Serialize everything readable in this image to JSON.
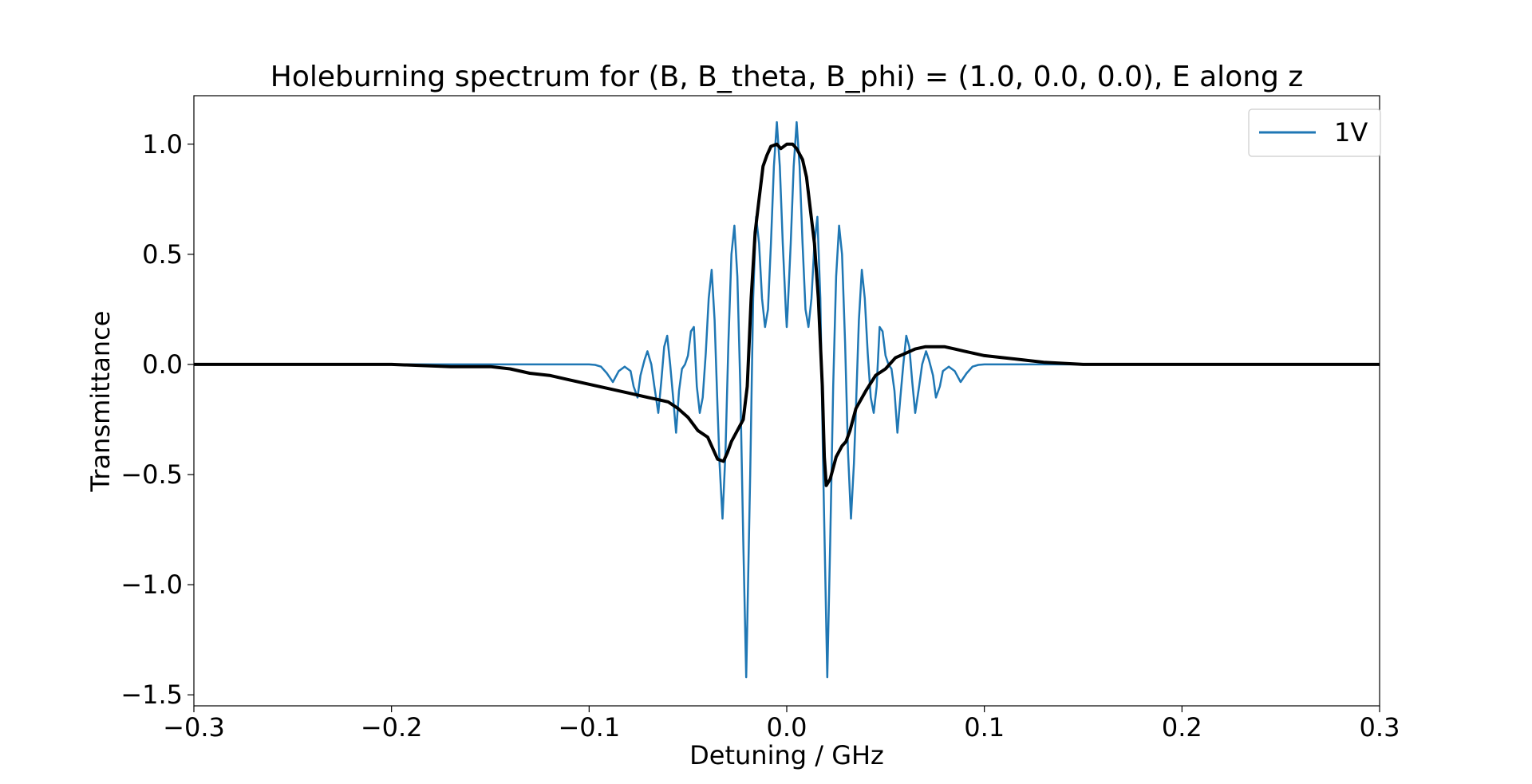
{
  "chart_data": {
    "type": "line",
    "title": "Holeburning spectrum for (B, B_theta, B_phi) = (1.0, 0.0, 0.0), E along z",
    "xlabel": "Detuning / GHz",
    "ylabel": "Transmittance",
    "xlim": [
      -0.3,
      0.3
    ],
    "ylim": [
      -1.55,
      1.22
    ],
    "xticks": [
      -0.3,
      -0.2,
      -0.1,
      0.0,
      0.1,
      0.2,
      0.3
    ],
    "xtick_labels": [
      "−0.3",
      "−0.2",
      "−0.1",
      "0.0",
      "0.1",
      "0.2",
      "0.3"
    ],
    "yticks": [
      1.0,
      0.5,
      0.0,
      -0.5,
      -1.0,
      -1.5
    ],
    "ytick_labels": [
      "1.0",
      "0.5",
      "0.0",
      "−0.5",
      "−1.0",
      "−1.5"
    ],
    "grid": false,
    "legend": {
      "placement": "top-right",
      "entries": [
        {
          "label": "1V",
          "color": "#1f77b4"
        }
      ]
    },
    "series": [
      {
        "name": "1V",
        "color": "#1f77b4",
        "style": "thin",
        "x": [
          -0.3,
          -0.1,
          -0.097,
          -0.094,
          -0.091,
          -0.088,
          -0.085,
          -0.082,
          -0.079,
          -0.0775,
          -0.0755,
          -0.074,
          -0.072,
          -0.0705,
          -0.0685,
          -0.067,
          -0.065,
          -0.0635,
          -0.062,
          -0.0605,
          -0.059,
          -0.0575,
          -0.056,
          -0.0545,
          -0.053,
          -0.0515,
          -0.05,
          -0.0485,
          -0.047,
          -0.0455,
          -0.044,
          -0.0425,
          -0.041,
          -0.0395,
          -0.038,
          -0.0365,
          -0.035,
          -0.034,
          -0.0325,
          -0.031,
          -0.0295,
          -0.028,
          -0.0265,
          -0.025,
          -0.0235,
          -0.022,
          -0.0205,
          -0.0185,
          -0.017,
          -0.0155,
          -0.014,
          -0.0125,
          -0.011,
          -0.0095,
          -0.008,
          -0.0065,
          -0.005,
          -0.0035,
          -0.002,
          -0.0005,
          0.0,
          0.0005,
          0.002,
          0.0035,
          0.005,
          0.0065,
          0.008,
          0.0095,
          0.011,
          0.0125,
          0.014,
          0.0155,
          0.017,
          0.0185,
          0.0205,
          0.022,
          0.0235,
          0.025,
          0.0265,
          0.028,
          0.0295,
          0.031,
          0.0325,
          0.034,
          0.035,
          0.0365,
          0.038,
          0.0395,
          0.041,
          0.0425,
          0.044,
          0.0455,
          0.047,
          0.0485,
          0.05,
          0.0515,
          0.053,
          0.0545,
          0.056,
          0.0575,
          0.059,
          0.0605,
          0.062,
          0.0635,
          0.065,
          0.067,
          0.0685,
          0.0705,
          0.072,
          0.074,
          0.0755,
          0.0775,
          0.079,
          0.082,
          0.085,
          0.088,
          0.091,
          0.094,
          0.097,
          0.1,
          0.3
        ],
        "y": [
          0.0,
          0.0,
          -0.002,
          -0.01,
          -0.04,
          -0.08,
          -0.03,
          -0.01,
          -0.03,
          -0.1,
          -0.15,
          -0.05,
          0.02,
          0.06,
          0.0,
          -0.1,
          -0.22,
          -0.08,
          0.08,
          0.13,
          0.0,
          -0.15,
          -0.31,
          -0.12,
          -0.02,
          0.0,
          0.04,
          0.15,
          0.17,
          -0.1,
          -0.22,
          -0.15,
          0.05,
          0.3,
          0.43,
          0.2,
          -0.2,
          -0.45,
          -0.7,
          -0.4,
          0.1,
          0.5,
          0.63,
          0.4,
          -0.1,
          -0.8,
          -1.42,
          -0.5,
          0.3,
          0.67,
          0.55,
          0.3,
          0.17,
          0.25,
          0.55,
          0.9,
          1.1,
          0.9,
          0.55,
          0.25,
          0.17,
          0.25,
          0.55,
          0.9,
          1.1,
          0.9,
          0.55,
          0.25,
          0.17,
          0.3,
          0.55,
          0.67,
          0.3,
          -0.5,
          -1.42,
          -0.8,
          -0.1,
          0.4,
          0.63,
          0.5,
          0.1,
          -0.4,
          -0.7,
          -0.45,
          -0.2,
          0.2,
          0.43,
          0.3,
          0.05,
          -0.15,
          -0.22,
          -0.1,
          0.17,
          0.15,
          0.04,
          0.0,
          -0.02,
          -0.12,
          -0.31,
          -0.15,
          0.0,
          0.13,
          0.08,
          -0.08,
          -0.22,
          -0.1,
          0.0,
          0.06,
          0.02,
          -0.05,
          -0.15,
          -0.1,
          -0.03,
          -0.01,
          -0.03,
          -0.08,
          -0.04,
          -0.01,
          -0.002,
          0.0,
          0.0
        ]
      },
      {
        "name": "",
        "color": "#000000",
        "style": "thick",
        "x": [
          -0.3,
          -0.2,
          -0.17,
          -0.15,
          -0.14,
          -0.13,
          -0.12,
          -0.11,
          -0.1,
          -0.09,
          -0.08,
          -0.07,
          -0.065,
          -0.06,
          -0.055,
          -0.05,
          -0.045,
          -0.04,
          -0.035,
          -0.032,
          -0.03,
          -0.028,
          -0.025,
          -0.022,
          -0.02,
          -0.018,
          -0.016,
          -0.014,
          -0.012,
          -0.01,
          -0.008,
          -0.005,
          -0.003,
          0.0,
          0.003,
          0.005,
          0.008,
          0.01,
          0.012,
          0.014,
          0.016,
          0.018,
          0.019,
          0.02,
          0.022,
          0.025,
          0.028,
          0.03,
          0.032,
          0.035,
          0.04,
          0.045,
          0.05,
          0.055,
          0.06,
          0.065,
          0.07,
          0.075,
          0.08,
          0.085,
          0.09,
          0.1,
          0.11,
          0.12,
          0.13,
          0.15,
          0.17,
          0.2,
          0.25,
          0.3
        ],
        "y": [
          0.0,
          0.0,
          -0.01,
          -0.01,
          -0.02,
          -0.04,
          -0.05,
          -0.07,
          -0.09,
          -0.11,
          -0.13,
          -0.15,
          -0.16,
          -0.17,
          -0.2,
          -0.24,
          -0.3,
          -0.33,
          -0.43,
          -0.44,
          -0.4,
          -0.35,
          -0.3,
          -0.25,
          -0.1,
          0.3,
          0.6,
          0.75,
          0.9,
          0.95,
          0.99,
          1.0,
          0.98,
          1.0,
          1.0,
          0.98,
          0.93,
          0.85,
          0.7,
          0.55,
          0.3,
          -0.1,
          -0.42,
          -0.55,
          -0.52,
          -0.42,
          -0.37,
          -0.35,
          -0.3,
          -0.2,
          -0.12,
          -0.05,
          -0.02,
          0.03,
          0.05,
          0.07,
          0.08,
          0.08,
          0.08,
          0.07,
          0.06,
          0.04,
          0.03,
          0.02,
          0.01,
          0.0,
          0.0,
          0.0,
          0.0,
          0.0
        ]
      }
    ]
  }
}
